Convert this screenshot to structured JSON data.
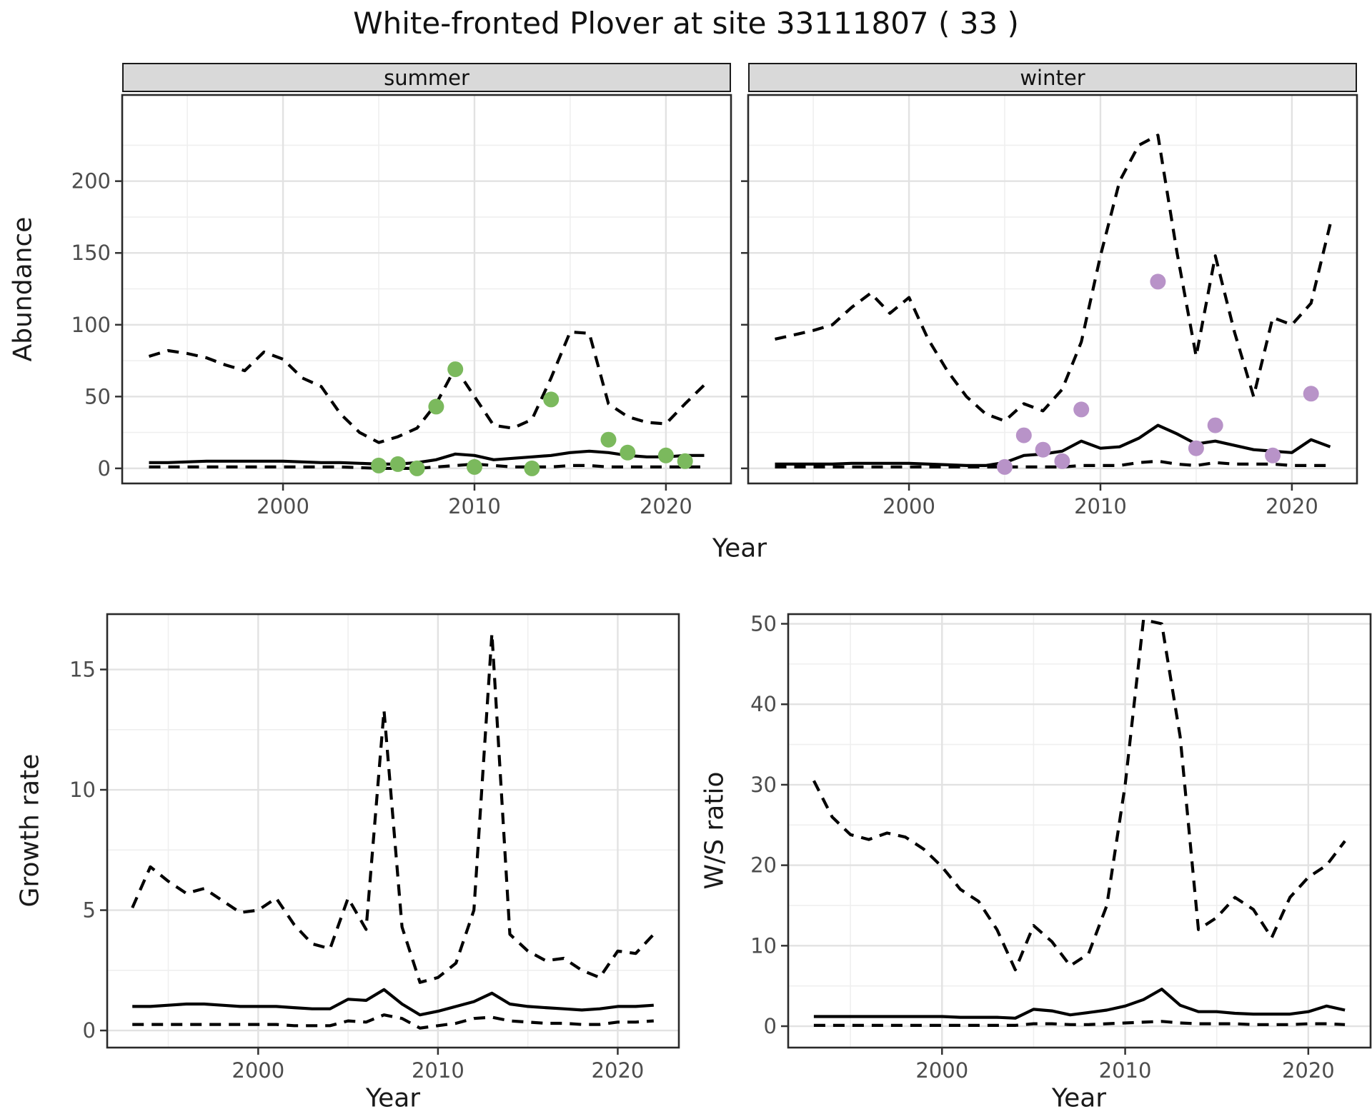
{
  "title": "White-fronted Plover at site 33111807 ( 33 )",
  "colors": {
    "summer_point": "#7bb95d",
    "winter_point": "#b893c8",
    "line": "#000000",
    "strip_bg": "#d9d9d9",
    "grid_major": "#e2e2e2",
    "grid_minor": "#efefef",
    "panel_border": "#2a2a2a",
    "axis_text": "#4d4d4d"
  },
  "chart_data": [
    {
      "type": "line",
      "panel": "abundance-summer",
      "facet_label": "summer",
      "ylabel": "Abundance",
      "xlabel": "Year",
      "legend": "none",
      "grid": true,
      "xlim": [
        1991.6,
        2023.4
      ],
      "ylim": [
        -10.5,
        260
      ],
      "xticks": [
        2000,
        2010,
        2020
      ],
      "yticks": [
        0,
        50,
        100,
        150,
        200
      ],
      "years": [
        1993,
        1994,
        1995,
        1996,
        1997,
        1998,
        1999,
        2000,
        2001,
        2002,
        2003,
        2004,
        2005,
        2006,
        2007,
        2008,
        2009,
        2010,
        2011,
        2012,
        2013,
        2014,
        2015,
        2016,
        2017,
        2018,
        2019,
        2020,
        2021,
        2022
      ],
      "series": [
        {
          "name": "upper_ci",
          "style": "dashed",
          "values": [
            78,
            82,
            80,
            77,
            72,
            68,
            81,
            76,
            63,
            57,
            38,
            25,
            18,
            22,
            28,
            45,
            70,
            50,
            30,
            28,
            34,
            63,
            95,
            94,
            45,
            36,
            32,
            31,
            45,
            58
          ]
        },
        {
          "name": "mean",
          "style": "solid",
          "values": [
            4,
            4,
            4.5,
            5,
            5,
            5,
            5,
            5,
            4.5,
            4,
            4,
            3.5,
            3,
            3,
            4,
            6,
            10,
            9,
            6,
            7,
            8,
            9,
            11,
            12,
            11,
            9,
            8,
            8,
            9,
            9
          ]
        },
        {
          "name": "lower_ci",
          "style": "dashed",
          "values": [
            1,
            1,
            1,
            1,
            1,
            1,
            1,
            1,
            1,
            1,
            1,
            0.5,
            0,
            0,
            0,
            1,
            2,
            3,
            2,
            1,
            1,
            1,
            2,
            2,
            1,
            1,
            1,
            1,
            1,
            1
          ]
        }
      ],
      "points": {
        "name": "observed-summer-counts",
        "color": "#7bb95d",
        "years": [
          2005,
          2006,
          2007,
          2008,
          2009,
          2010,
          2013,
          2014,
          2017,
          2018,
          2020,
          2021
        ],
        "values": [
          2,
          3,
          0,
          43,
          69,
          1,
          0,
          48,
          20,
          11,
          9,
          5
        ]
      }
    },
    {
      "type": "line",
      "panel": "abundance-winter",
      "facet_label": "winter",
      "ylabel": "Abundance",
      "xlabel": "Year",
      "legend": "none",
      "grid": true,
      "xlim": [
        1991.6,
        2023.4
      ],
      "ylim": [
        -10.5,
        260
      ],
      "xticks": [
        2000,
        2010,
        2020
      ],
      "yticks": [
        0,
        50,
        100,
        150,
        200
      ],
      "years": [
        1993,
        1994,
        1995,
        1996,
        1997,
        1998,
        1999,
        2000,
        2001,
        2002,
        2003,
        2004,
        2005,
        2006,
        2007,
        2008,
        2009,
        2010,
        2011,
        2012,
        2013,
        2014,
        2015,
        2016,
        2017,
        2018,
        2019,
        2020,
        2021,
        2022
      ],
      "series": [
        {
          "name": "upper_ci",
          "style": "dashed",
          "values": [
            90,
            93,
            96,
            100,
            112,
            122,
            108,
            119,
            90,
            68,
            50,
            38,
            33,
            45,
            40,
            55,
            88,
            148,
            200,
            225,
            232,
            150,
            78,
            148,
            95,
            50,
            105,
            100,
            115,
            170
          ]
        },
        {
          "name": "mean",
          "style": "solid",
          "values": [
            3,
            3,
            3,
            3,
            3.5,
            3.5,
            3.5,
            3.5,
            3,
            2.5,
            2,
            2,
            4,
            9,
            10,
            12,
            19,
            14,
            15,
            21,
            30,
            24,
            17,
            19,
            16,
            13,
            12,
            11,
            20,
            15
          ]
        },
        {
          "name": "lower_ci",
          "style": "dashed",
          "values": [
            1,
            1,
            1,
            1,
            1,
            1,
            1,
            1,
            1,
            1,
            1,
            1,
            1,
            1,
            1,
            1,
            2,
            2,
            2,
            4,
            5,
            3,
            2,
            4,
            3,
            3,
            3,
            2,
            2,
            2
          ]
        }
      ],
      "points": {
        "name": "observed-winter-counts",
        "color": "#b893c8",
        "years": [
          2005,
          2006,
          2007,
          2008,
          2009,
          2013,
          2015,
          2016,
          2019,
          2021
        ],
        "values": [
          1,
          23,
          13,
          5,
          41,
          130,
          14,
          30,
          9,
          52
        ]
      }
    },
    {
      "type": "line",
      "panel": "growth-rate",
      "facet_label": "",
      "ylabel": "Growth rate",
      "xlabel": "Year",
      "legend": "none",
      "grid": true,
      "xlim": [
        1991.6,
        2023.4
      ],
      "ylim": [
        -0.71,
        17.3
      ],
      "xticks": [
        2000,
        2010,
        2020
      ],
      "yticks": [
        0,
        5,
        10,
        15
      ],
      "years": [
        1993,
        1994,
        1995,
        1996,
        1997,
        1998,
        1999,
        2000,
        2001,
        2002,
        2003,
        2004,
        2005,
        2006,
        2007,
        2008,
        2009,
        2010,
        2011,
        2012,
        2013,
        2014,
        2015,
        2016,
        2017,
        2018,
        2019,
        2020,
        2021,
        2022
      ],
      "series": [
        {
          "name": "upper_ci",
          "style": "dashed",
          "values": [
            5.1,
            6.8,
            6.2,
            5.7,
            5.9,
            5.4,
            4.9,
            5.0,
            5.5,
            4.4,
            3.6,
            3.4,
            5.5,
            4.2,
            13.3,
            4.3,
            2.0,
            2.2,
            2.8,
            5.0,
            16.5,
            4.0,
            3.3,
            2.9,
            3.0,
            2.5,
            2.2,
            3.3,
            3.2,
            4.0
          ]
        },
        {
          "name": "mean",
          "style": "solid",
          "values": [
            1.0,
            1.0,
            1.05,
            1.1,
            1.1,
            1.05,
            1.0,
            1.0,
            1.0,
            0.95,
            0.9,
            0.9,
            1.3,
            1.25,
            1.7,
            1.1,
            0.65,
            0.8,
            1.0,
            1.2,
            1.55,
            1.1,
            1.0,
            0.95,
            0.9,
            0.85,
            0.9,
            1.0,
            1.0,
            1.05
          ]
        },
        {
          "name": "lower_ci",
          "style": "dashed",
          "values": [
            0.25,
            0.25,
            0.25,
            0.25,
            0.25,
            0.25,
            0.25,
            0.25,
            0.25,
            0.2,
            0.2,
            0.2,
            0.4,
            0.35,
            0.65,
            0.5,
            0.1,
            0.2,
            0.3,
            0.5,
            0.55,
            0.4,
            0.35,
            0.3,
            0.3,
            0.25,
            0.25,
            0.35,
            0.35,
            0.4
          ]
        }
      ]
    },
    {
      "type": "line",
      "panel": "ws-ratio",
      "facet_label": "",
      "ylabel": "W/S ratio",
      "xlabel": "Year",
      "legend": "none",
      "grid": true,
      "xlim": [
        1991.6,
        2023.4
      ],
      "ylim": [
        -2.66,
        51.2
      ],
      "xticks": [
        2000,
        2010,
        2020
      ],
      "yticks": [
        0,
        10,
        20,
        30,
        40,
        50
      ],
      "years": [
        1993,
        1994,
        1995,
        1996,
        1997,
        1998,
        1999,
        2000,
        2001,
        2002,
        2003,
        2004,
        2005,
        2006,
        2007,
        2008,
        2009,
        2010,
        2011,
        2012,
        2013,
        2014,
        2015,
        2016,
        2017,
        2018,
        2019,
        2020,
        2021,
        2022
      ],
      "series": [
        {
          "name": "upper_ci",
          "style": "dashed",
          "values": [
            30.5,
            26,
            23.8,
            23.2,
            24,
            23.5,
            22,
            19.8,
            17,
            15.5,
            12,
            7,
            12.5,
            10.5,
            7.5,
            9,
            15,
            30,
            50.5,
            50,
            36,
            12,
            13.5,
            16,
            14.5,
            11,
            16,
            18.5,
            20,
            23
          ]
        },
        {
          "name": "mean",
          "style": "solid",
          "values": [
            1.2,
            1.2,
            1.2,
            1.2,
            1.2,
            1.2,
            1.2,
            1.2,
            1.1,
            1.1,
            1.1,
            1.0,
            2.1,
            1.9,
            1.4,
            1.7,
            2.0,
            2.5,
            3.3,
            4.6,
            2.6,
            1.8,
            1.8,
            1.6,
            1.5,
            1.5,
            1.5,
            1.8,
            2.5,
            2.0
          ]
        },
        {
          "name": "lower_ci",
          "style": "dashed",
          "values": [
            0.1,
            0.1,
            0.1,
            0.1,
            0.1,
            0.1,
            0.1,
            0.1,
            0.1,
            0.1,
            0.1,
            0.1,
            0.3,
            0.3,
            0.2,
            0.2,
            0.3,
            0.4,
            0.5,
            0.6,
            0.4,
            0.3,
            0.3,
            0.3,
            0.2,
            0.2,
            0.2,
            0.3,
            0.3,
            0.2
          ]
        }
      ]
    }
  ]
}
